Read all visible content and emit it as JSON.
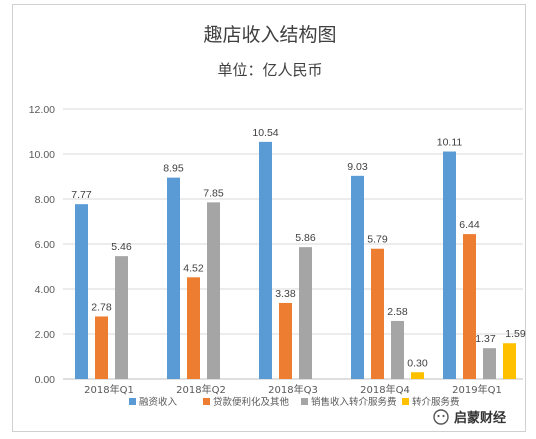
{
  "chart_data": {
    "type": "bar",
    "title": "趣店收入结构图",
    "subtitle": "单位：亿人民币",
    "categories": [
      "2018年Q1",
      "2018年Q2",
      "2018年Q3",
      "2018年Q4",
      "2019年Q1"
    ],
    "series": [
      {
        "name": "融资收入",
        "color": "#5b9bd5",
        "values": [
          7.77,
          8.95,
          10.54,
          9.03,
          10.11
        ]
      },
      {
        "name": "贷款便利化及其他",
        "color": "#ed7d31",
        "values": [
          2.78,
          4.52,
          3.38,
          5.79,
          6.44
        ]
      },
      {
        "name": "销售收入转介服务费",
        "color": "#a5a5a5",
        "values": [
          5.46,
          7.85,
          5.86,
          2.58,
          1.37
        ]
      },
      {
        "name": "转介服务费",
        "color": "#ffc000",
        "values": [
          null,
          null,
          null,
          0.3,
          1.59
        ]
      }
    ],
    "data_labels": [
      [
        "7.77",
        "8.95",
        "10.54",
        "9.03",
        "10.11"
      ],
      [
        "2.78",
        "4.52",
        "3.38",
        "5.79",
        "6.44"
      ],
      [
        "5.46",
        "7.85",
        "5.86",
        "2.58",
        "1.37"
      ],
      [
        null,
        null,
        null,
        "0.30",
        "1.59"
      ]
    ],
    "yticks": [
      "0.00",
      "2.00",
      "4.00",
      "6.00",
      "8.00",
      "10.00",
      "12.00"
    ],
    "ylim": [
      0,
      12
    ],
    "grid": true,
    "legend_position": "bottom"
  },
  "watermark": {
    "text": "启蒙财经"
  }
}
